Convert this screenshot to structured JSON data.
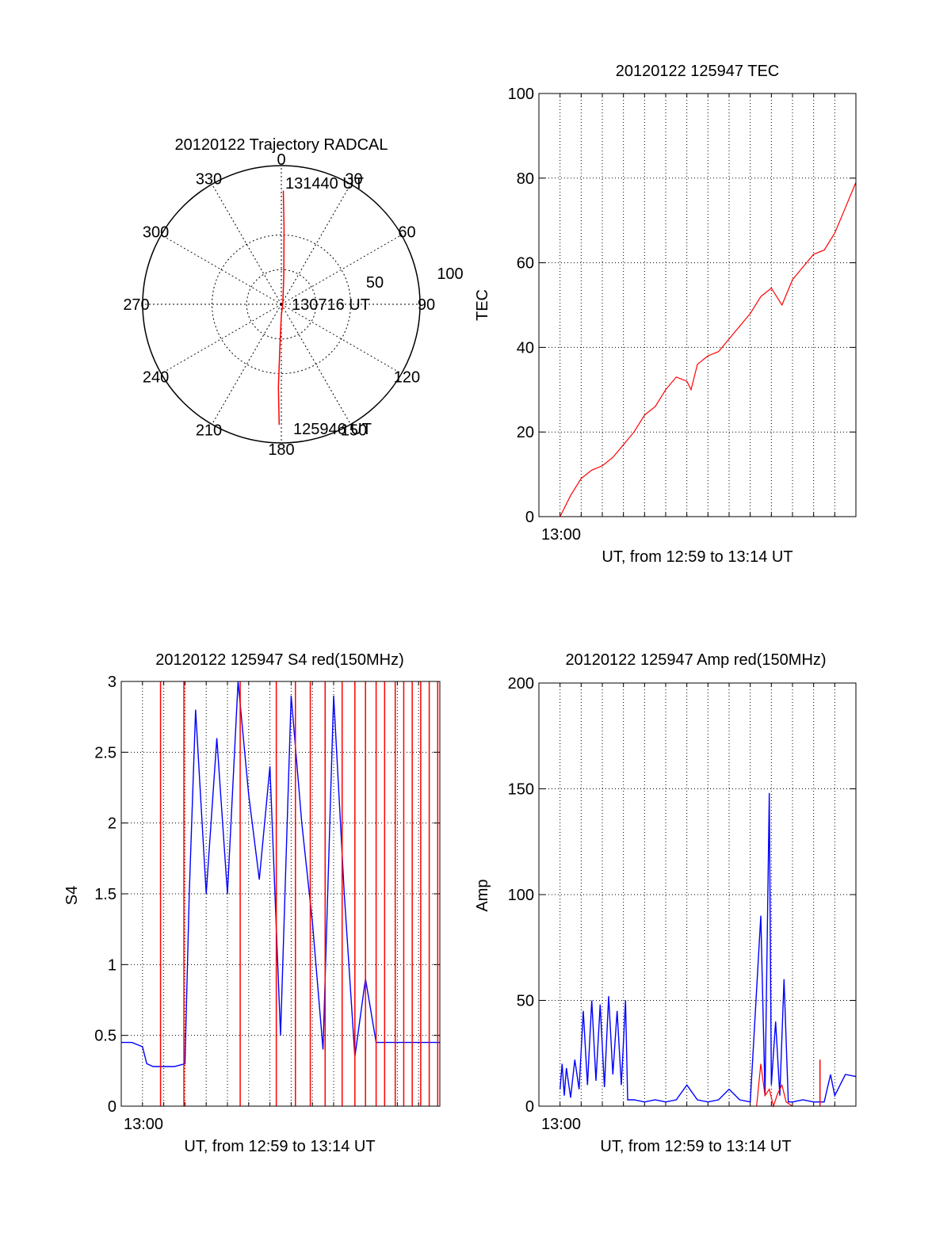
{
  "colors": {
    "red": "#ff0000",
    "blue": "#0000ff",
    "axis": "#000000",
    "grid": "#000000",
    "background": "#ffffff"
  },
  "chart_data": [
    {
      "type": "polar",
      "title": "20120122 Trajectory RADCAL",
      "azimuth_ticks": [
        0,
        30,
        60,
        90,
        120,
        150,
        180,
        210,
        240,
        270,
        300,
        330
      ],
      "radial_labels": [
        "50",
        "100"
      ],
      "radial_range": [
        0,
        100
      ],
      "grid": true,
      "series": [
        {
          "color": "red",
          "points": [
            {
              "az": 181,
              "r": 87
            },
            {
              "az": 182,
              "r": 60
            },
            {
              "az": 182,
              "r": 30
            },
            {
              "az": 180,
              "r": 8
            },
            {
              "az": 90,
              "r": 1
            },
            {
              "az": 5,
              "r": 20
            },
            {
              "az": 2,
              "r": 55
            },
            {
              "az": 1,
              "r": 82
            }
          ]
        }
      ],
      "annotations": [
        "131440 UT",
        "130716 UT",
        "125946 UT"
      ]
    },
    {
      "type": "line",
      "title": "20120122 125947 TEC",
      "ylabel": "TEC",
      "xlabel": "UT, from 12:59 to 13:14 UT",
      "x_tick_label": "13:00",
      "xlim": [
        0,
        15
      ],
      "ylim": [
        0,
        100
      ],
      "yticks": [
        0,
        20,
        40,
        60,
        80,
        100
      ],
      "grid": true,
      "series": [
        {
          "color": "red",
          "x": [
            1.0,
            1.5,
            2.0,
            2.5,
            3.0,
            3.5,
            4.0,
            4.5,
            5.0,
            5.5,
            6.0,
            6.5,
            7.0,
            7.2,
            7.5,
            8.0,
            8.5,
            9.0,
            9.5,
            10.0,
            10.5,
            11.0,
            11.5,
            12.0,
            12.5,
            13.0,
            13.5,
            14.0,
            14.5,
            15.0
          ],
          "y": [
            0,
            5,
            9,
            11,
            12,
            14,
            17,
            20,
            24,
            26,
            30,
            33,
            32,
            30,
            36,
            38,
            39,
            42,
            45,
            48,
            52,
            54,
            50,
            56,
            59,
            62,
            63,
            67,
            73,
            79
          ]
        }
      ]
    },
    {
      "type": "line",
      "title": "20120122 125947 S4 red(150MHz)",
      "ylabel": "S4",
      "xlabel": "UT, from 12:59 to 13:14 UT",
      "x_tick_label": "13:00",
      "xlim": [
        0,
        15
      ],
      "ylim": [
        0,
        3
      ],
      "yticks": [
        "0",
        "0.5",
        "1",
        "1.5",
        "2",
        "2.5",
        "3"
      ],
      "grid": true,
      "series": [
        {
          "color": "blue",
          "x": [
            0.0,
            0.5,
            1.0,
            1.2,
            1.5,
            2.0,
            2.5,
            3.0,
            3.2,
            3.5,
            4.0,
            4.5,
            5.0,
            5.5,
            6.0,
            6.5,
            7.0,
            7.5,
            8.0,
            8.5,
            9.0,
            9.5,
            10.0,
            10.5,
            11.0,
            11.5,
            12.0,
            12.5,
            13.0,
            13.5,
            14.0,
            14.5,
            15.0
          ],
          "y": [
            0.45,
            0.45,
            0.42,
            0.3,
            0.28,
            0.28,
            0.28,
            0.3,
            1.5,
            2.8,
            1.5,
            2.6,
            1.5,
            3.0,
            2.2,
            1.6,
            2.4,
            0.5,
            2.9,
            2.0,
            1.3,
            0.4,
            2.9,
            1.5,
            0.35,
            0.9,
            0.45,
            0.45,
            0.45,
            0.45,
            0.45,
            0.45,
            0.45
          ]
        },
        {
          "color": "red",
          "spikes": [
            1.85,
            2.95,
            5.6,
            7.3,
            8.2,
            8.9,
            9.6,
            10.4,
            11.0,
            11.5,
            12.0,
            12.4,
            12.9,
            13.3,
            13.7,
            14.1,
            14.5,
            14.9
          ]
        }
      ]
    },
    {
      "type": "line",
      "title": "20120122 125947 Amp red(150MHz)",
      "ylabel": "Amp",
      "xlabel": "UT, from 12:59 to 13:14 UT",
      "x_tick_label": "13:00",
      "xlim": [
        0,
        15
      ],
      "ylim": [
        0,
        200
      ],
      "yticks": [
        0,
        50,
        100,
        150,
        200
      ],
      "grid": true,
      "series": [
        {
          "color": "blue",
          "x": [
            1.0,
            1.1,
            1.2,
            1.3,
            1.5,
            1.7,
            1.9,
            2.1,
            2.3,
            2.5,
            2.7,
            2.9,
            3.1,
            3.3,
            3.5,
            3.7,
            3.9,
            4.1,
            4.2,
            4.5,
            5.0,
            5.5,
            6.0,
            6.5,
            7.0,
            7.5,
            8.0,
            8.5,
            9.0,
            9.5,
            10.0,
            10.5,
            10.7,
            10.9,
            11.0,
            11.2,
            11.4,
            11.6,
            11.8,
            12.0,
            12.5,
            13.0,
            13.5,
            13.8,
            14.0,
            14.5,
            15.0
          ],
          "y": [
            8,
            20,
            5,
            18,
            4,
            22,
            8,
            45,
            10,
            50,
            12,
            48,
            9,
            52,
            15,
            45,
            10,
            50,
            3,
            3,
            2,
            3,
            2,
            3,
            10,
            3,
            2,
            3,
            8,
            3,
            2,
            90,
            5,
            148,
            10,
            40,
            5,
            60,
            2,
            2,
            3,
            2,
            2,
            15,
            5,
            15,
            14
          ]
        },
        {
          "color": "red",
          "x": [
            10.3,
            10.5,
            10.7,
            10.9,
            11.1,
            11.3,
            11.5,
            11.7,
            12.0
          ],
          "y": [
            0,
            20,
            5,
            8,
            0,
            6,
            10,
            2,
            0
          ]
        },
        {
          "color": "red",
          "spikes": [
            13.3
          ],
          "spike_height": 22
        }
      ]
    }
  ]
}
